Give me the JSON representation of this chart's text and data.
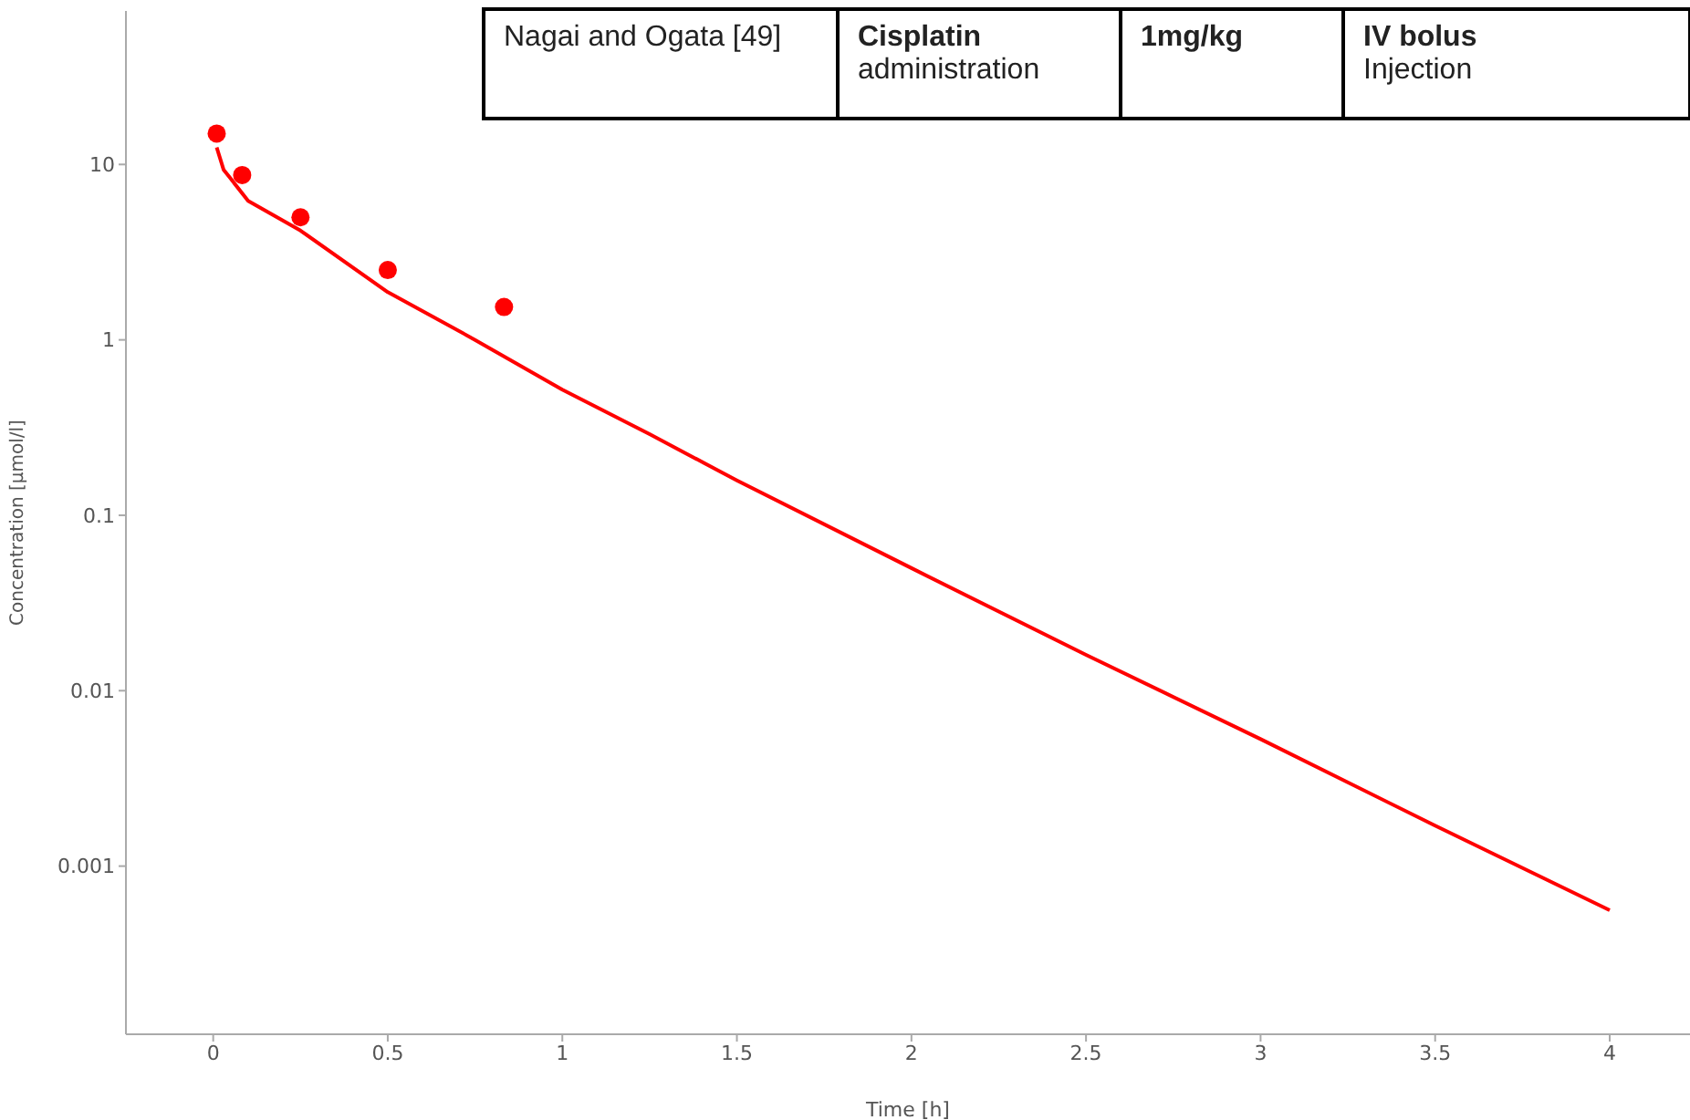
{
  "chart_data": {
    "type": "line",
    "xlabel": "Time [h]",
    "ylabel": "Concentration [µmol/l]",
    "log": "y",
    "grid": false,
    "xlim": [
      -0.25,
      4.23
    ],
    "xticks": [
      0,
      0.5,
      1,
      1.5,
      2,
      2.5,
      3,
      3.5,
      4
    ],
    "ylim": [
      0.00011,
      75
    ],
    "yticks": [
      0.001,
      0.01,
      0.1,
      1,
      10
    ],
    "series": [
      {
        "color": "#ff0000",
        "marker": "none",
        "line_style": "solid",
        "x": [
          0.01,
          0.03,
          0.05,
          0.1,
          0.25,
          0.5,
          0.75,
          1,
          1.25,
          1.5,
          2,
          2.5,
          3,
          3.5,
          4
        ],
        "values": [
          12.5,
          9.3,
          8.3,
          6.2,
          4.2,
          1.87,
          1.0,
          0.52,
          0.29,
          0.158,
          0.05,
          0.016,
          0.0053,
          0.0017,
          0.00056
        ]
      },
      {
        "type": "scatter",
        "color": "#ff0000",
        "marker": "circle",
        "x": [
          0.01,
          0.083,
          0.25,
          0.5,
          0.833
        ],
        "values": [
          15,
          8.7,
          5.0,
          2.5,
          1.54
        ]
      }
    ],
    "annotations": [
      "Nagai and Ogata [49]",
      "Cisplatin",
      "administration",
      "1mg/kg",
      "IV bolus",
      "Injection"
    ]
  }
}
